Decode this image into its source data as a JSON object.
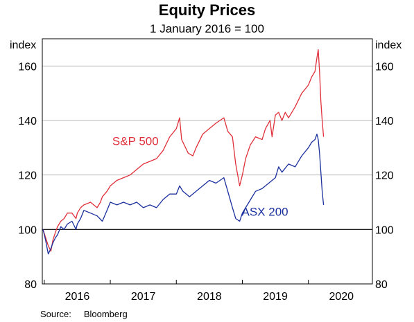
{
  "chart_data": {
    "type": "line",
    "title": "Equity Prices",
    "subtitle": "1 January 2016 = 100",
    "ylabel_left": "index",
    "ylabel_right": "index",
    "ylim": [
      80,
      170
    ],
    "yticks": [
      80,
      100,
      120,
      140,
      160
    ],
    "xlim": [
      2015.97,
      2020.97
    ],
    "xtick_labels": [
      "2016",
      "2017",
      "2018",
      "2019",
      "2020"
    ],
    "reference_line": 100,
    "grid": true,
    "series": [
      {
        "name": "S&P 500",
        "color": "#e0303a",
        "x": [
          2015.98,
          2016.02,
          2016.06,
          2016.1,
          2016.13,
          2016.17,
          2016.2,
          2016.25,
          2016.3,
          2016.35,
          2016.42,
          2016.48,
          2016.5,
          2016.55,
          2016.6,
          2016.7,
          2016.8,
          2016.85,
          2016.88,
          2016.95,
          2017.0,
          2017.1,
          2017.2,
          2017.3,
          2017.4,
          2017.5,
          2017.6,
          2017.7,
          2017.8,
          2017.9,
          2018.0,
          2018.05,
          2018.08,
          2018.12,
          2018.18,
          2018.25,
          2018.3,
          2018.4,
          2018.5,
          2018.6,
          2018.72,
          2018.78,
          2018.85,
          2018.9,
          2018.96,
          2019.0,
          2019.05,
          2019.12,
          2019.2,
          2019.3,
          2019.35,
          2019.42,
          2019.45,
          2019.5,
          2019.55,
          2019.6,
          2019.65,
          2019.7,
          2019.8,
          2019.9,
          2020.0,
          2020.05,
          2020.1,
          2020.13,
          2020.15,
          2020.17,
          2020.19,
          2020.21,
          2020.23
        ],
        "values": [
          100,
          97,
          94,
          92,
          96,
          99,
          101,
          103,
          104,
          106,
          106,
          104,
          106,
          108,
          109,
          110,
          108,
          110,
          112,
          114,
          116,
          118,
          119,
          120,
          122,
          124,
          125,
          126,
          129,
          134,
          137,
          141,
          133,
          131,
          128,
          127,
          130,
          135,
          137,
          139,
          141,
          136,
          134,
          124,
          116,
          120,
          126,
          131,
          134,
          133,
          137,
          140,
          134,
          142,
          143,
          140,
          143,
          141,
          145,
          150,
          153,
          156,
          158,
          163,
          166,
          158,
          147,
          140,
          134
        ]
      },
      {
        "name": "ASX 200",
        "color": "#1a2f9e",
        "x": [
          2015.98,
          2016.02,
          2016.06,
          2016.1,
          2016.13,
          2016.17,
          2016.2,
          2016.25,
          2016.3,
          2016.35,
          2016.42,
          2016.48,
          2016.5,
          2016.55,
          2016.6,
          2016.7,
          2016.8,
          2016.88,
          2016.95,
          2017.0,
          2017.1,
          2017.2,
          2017.3,
          2017.4,
          2017.5,
          2017.6,
          2017.7,
          2017.8,
          2017.9,
          2018.0,
          2018.05,
          2018.1,
          2018.2,
          2018.3,
          2018.4,
          2018.5,
          2018.6,
          2018.72,
          2018.78,
          2018.85,
          2018.9,
          2018.96,
          2019.0,
          2019.1,
          2019.2,
          2019.3,
          2019.4,
          2019.5,
          2019.55,
          2019.6,
          2019.7,
          2019.8,
          2019.9,
          2020.0,
          2020.05,
          2020.1,
          2020.13,
          2020.15,
          2020.17,
          2020.19,
          2020.21,
          2020.23
        ],
        "values": [
          100,
          96,
          91,
          93,
          95,
          97,
          98,
          101,
          100,
          102,
          103,
          100,
          102,
          104,
          107,
          106,
          105,
          103,
          107,
          110,
          109,
          110,
          109,
          110,
          108,
          109,
          108,
          111,
          113,
          113,
          116,
          114,
          112,
          114,
          116,
          118,
          117,
          119,
          114,
          108,
          104,
          103,
          106,
          110,
          114,
          115,
          117,
          119,
          123,
          121,
          124,
          123,
          127,
          130,
          132,
          133,
          135,
          133,
          128,
          121,
          114,
          109
        ]
      }
    ],
    "series_labels": [
      "S&P 500",
      "ASX 200"
    ],
    "source_label": "Source:",
    "source_name": "Bloomberg"
  }
}
